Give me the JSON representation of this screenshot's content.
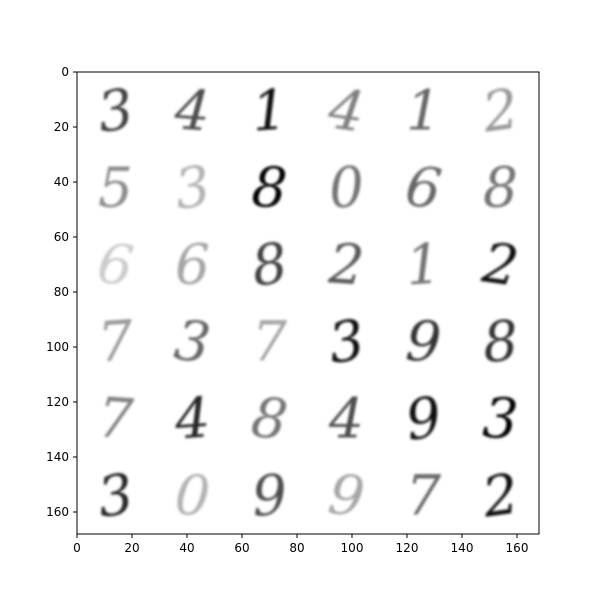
{
  "chart_data": {
    "type": "heatmap",
    "title": "",
    "xlabel": "",
    "ylabel": "",
    "xlim": [
      0,
      168
    ],
    "ylim": [
      168,
      0
    ],
    "grid": false,
    "colormap": "Greys",
    "x_ticks": [
      0,
      20,
      40,
      60,
      80,
      100,
      120,
      140,
      160
    ],
    "y_ticks": [
      0,
      20,
      40,
      60,
      80,
      100,
      120,
      140,
      160
    ],
    "grid_rows": 6,
    "grid_cols": 6,
    "cell_size": 28,
    "digits": [
      [
        "3",
        "4",
        "1",
        "4",
        "1",
        "2"
      ],
      [
        "5",
        "3",
        "8",
        "0",
        "6",
        "8"
      ],
      [
        "6",
        "6",
        "8",
        "2",
        "1",
        "2"
      ],
      [
        "7",
        "3",
        "7",
        "3",
        "9",
        "8"
      ],
      [
        "7",
        "4",
        "8",
        "4",
        "9",
        "3"
      ],
      [
        "3",
        "0",
        "9",
        "9",
        "7",
        "2"
      ]
    ],
    "ink_intensity": [
      [
        0.75,
        0.7,
        0.95,
        0.5,
        0.6,
        0.4
      ],
      [
        0.45,
        0.3,
        1.0,
        0.55,
        0.6,
        0.55
      ],
      [
        0.2,
        0.35,
        0.75,
        0.65,
        0.55,
        0.95
      ],
      [
        0.4,
        0.6,
        0.35,
        0.95,
        0.8,
        0.8
      ],
      [
        0.5,
        0.85,
        0.55,
        0.7,
        0.95,
        1.0
      ],
      [
        0.85,
        0.3,
        0.7,
        0.35,
        0.6,
        0.95
      ]
    ]
  }
}
